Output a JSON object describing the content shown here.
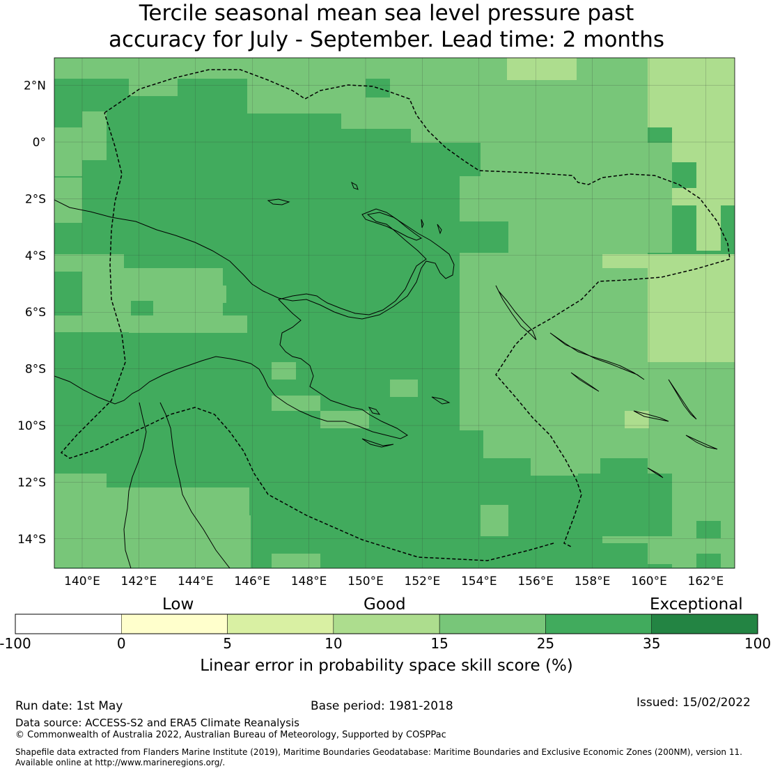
{
  "title_line1": "Tercile seasonal mean sea level pressure past",
  "title_line2": "accuracy for July - September. Lead time: 2 months",
  "map": {
    "lon_ticks": [
      "140°E",
      "142°E",
      "144°E",
      "146°E",
      "148°E",
      "150°E",
      "152°E",
      "154°E",
      "156°E",
      "158°E",
      "160°E",
      "162°E"
    ],
    "lat_ticks": [
      "2°N",
      "0°",
      "2°S",
      "4°S",
      "6°S",
      "8°S",
      "10°S",
      "12°S",
      "14°S"
    ],
    "extent": {
      "lon_min": 139.0,
      "lon_max": 162.9,
      "lat_min": -15.0,
      "lat_max": 3.0
    },
    "dominant_category": "25-35",
    "notes_colors": {
      "band_25_35": "#41ab5d",
      "band_15_25": "#78c679",
      "band_10_15": "#addd8e",
      "band_5_10": "#d9f0a3"
    }
  },
  "colorbar": {
    "categories": [
      "Low",
      "Good",
      "Exceptional"
    ],
    "ticks": [
      "-100",
      "0",
      "5",
      "10",
      "15",
      "25",
      "35",
      "100"
    ],
    "bands": [
      {
        "from": -100,
        "to": 0,
        "color": "#ffffff"
      },
      {
        "from": 0,
        "to": 5,
        "color": "#ffffcc"
      },
      {
        "from": 5,
        "to": 10,
        "color": "#d9f0a3"
      },
      {
        "from": 10,
        "to": 15,
        "color": "#addd8e"
      },
      {
        "from": 15,
        "to": 25,
        "color": "#78c679"
      },
      {
        "from": 25,
        "to": 35,
        "color": "#41ab5d"
      },
      {
        "from": 35,
        "to": 100,
        "color": "#238443"
      }
    ],
    "label": "Linear error in probability space skill score (%)"
  },
  "footer": {
    "run_date": "Run date: 1st May",
    "base_period": "Base period: 1981-2018",
    "issued": "Issued: 15/02/2022",
    "data_source": "Data source: ACCESS-S2 and ERA5 Climate Reanalysis",
    "copyright": "© Commonwealth of Australia 2022, Australian Bureau of Meteorology, Supported by COSPPac",
    "shapefile_line1": "Shapefile data extracted from Flanders Marine Institute (2019), Maritime Boundaries Geodatabase: Maritime Boundaries and Exclusive Economic Zones (200NM), version 11.",
    "shapefile_line2": "Available online at http://www.marineregions.org/."
  }
}
